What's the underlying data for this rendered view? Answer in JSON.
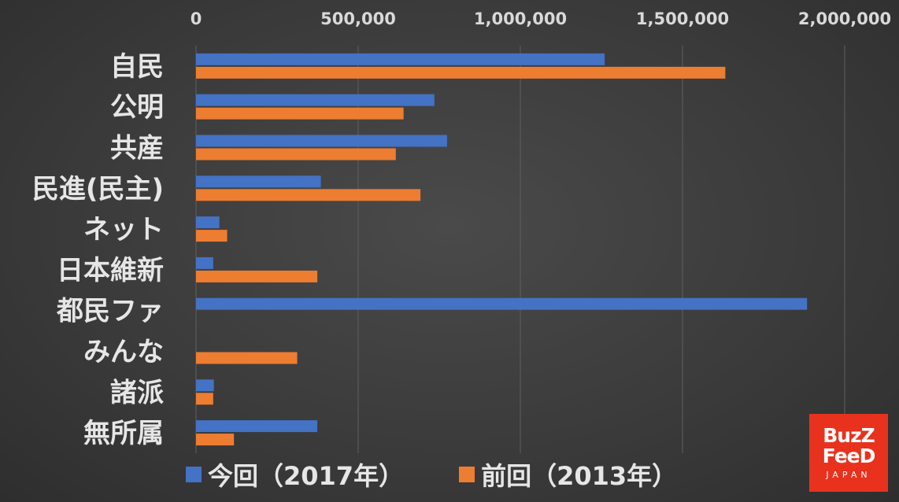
{
  "colors": {
    "series_2017": "#4472C4",
    "series_2013": "#ED7D31",
    "grid": "#5f5f5f",
    "logo": "#e8321e"
  },
  "legend": {
    "items": [
      {
        "label": "今回（2017年）",
        "color": "#4472C4"
      },
      {
        "label": "前回（2013年）",
        "color": "#ED7D31"
      }
    ]
  },
  "logo": {
    "line1": "BuzZ",
    "line2": "FeeD",
    "sub": "JAPAN"
  },
  "chart_data": {
    "type": "bar",
    "orientation": "horizontal",
    "categories": [
      "自民",
      "公明",
      "共産",
      "民進(民主)",
      "ネット",
      "日本維新",
      "都民ファ",
      "みんな",
      "諸派",
      "無所属"
    ],
    "series": [
      {
        "name": "今回（2017年）",
        "values": [
          1260000,
          735000,
          774000,
          385000,
          72000,
          53000,
          1884000,
          0,
          55000,
          374000
        ]
      },
      {
        "name": "前回（2013年）",
        "values": [
          1632000,
          640000,
          616000,
          692000,
          96000,
          374000,
          0,
          312000,
          53000,
          117000
        ]
      }
    ],
    "xlim": [
      0,
      2000000
    ],
    "xticks": [
      0,
      500000,
      1000000,
      1500000,
      2000000
    ],
    "xtick_labels": [
      "0",
      "500,000",
      "1,000,000",
      "1,500,000",
      "2,000,000"
    ],
    "axis_position": "top",
    "grid": true,
    "legend_position": "bottom"
  }
}
